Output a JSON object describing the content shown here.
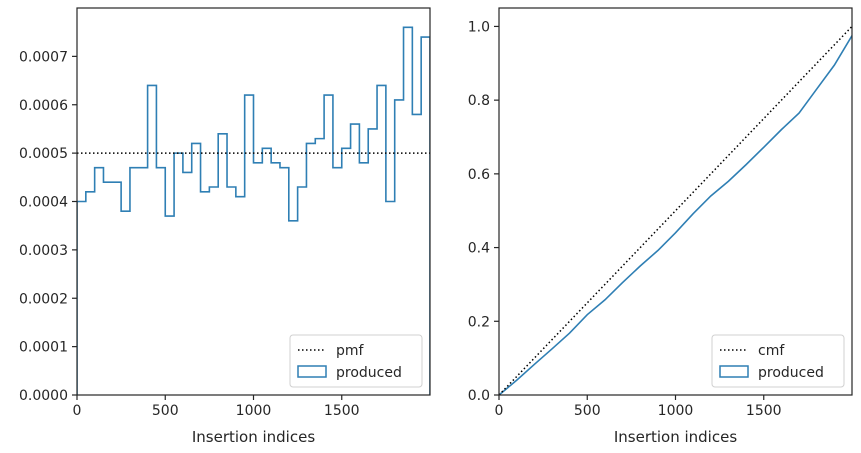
{
  "colors": {
    "series": "#2f7fb4",
    "reference": "#000000",
    "axes": "#262626",
    "legend_border": "#d0d0d0"
  },
  "chart_data": [
    {
      "type": "histogram-step",
      "title": "",
      "xlabel": "Insertion indices",
      "ylabel": "",
      "xlim": [
        0,
        2000
      ],
      "ylim": [
        0,
        0.0008
      ],
      "xticks": [
        0,
        500,
        1000,
        1500
      ],
      "xtick_labels": [
        "0",
        "500",
        "1000",
        "1500"
      ],
      "yticks": [
        0,
        0.0001,
        0.0002,
        0.0003,
        0.0004,
        0.0005,
        0.0006,
        0.0007
      ],
      "ytick_labels": [
        "0.0000",
        "0.0001",
        "0.0002",
        "0.0003",
        "0.0004",
        "0.0005",
        "0.0006",
        "0.0007"
      ],
      "grid": false,
      "legend_position": "lower-right",
      "series": [
        {
          "name": "produced",
          "style": "step",
          "bin_edges": [
            0,
            50,
            100,
            150,
            200,
            250,
            300,
            350,
            400,
            450,
            500,
            550,
            600,
            650,
            700,
            750,
            800,
            850,
            900,
            950,
            1000,
            1050,
            1100,
            1150,
            1200,
            1250,
            1300,
            1350,
            1400,
            1450,
            1500,
            1550,
            1600,
            1650,
            1700,
            1750,
            1800,
            1850,
            1900,
            1950,
            2000
          ],
          "values": [
            0.0004,
            0.00042,
            0.00047,
            0.00044,
            0.00044,
            0.00038,
            0.00047,
            0.00047,
            0.00064,
            0.00047,
            0.00037,
            0.0005,
            0.00046,
            0.00052,
            0.00042,
            0.00043,
            0.00054,
            0.00043,
            0.00041,
            0.00062,
            0.00048,
            0.00051,
            0.00048,
            0.00047,
            0.00036,
            0.00043,
            0.00052,
            0.00053,
            0.00062,
            0.00047,
            0.00051,
            0.00056,
            0.00048,
            0.00055,
            0.00064,
            0.0004,
            0.00061,
            0.00076,
            0.00058,
            0.00074
          ]
        },
        {
          "name": "pmf",
          "style": "dotted",
          "x": [
            0,
            2000
          ],
          "y": [
            0.0005,
            0.0005
          ]
        }
      ]
    },
    {
      "type": "line",
      "title": "",
      "xlabel": "Insertion indices",
      "ylabel": "",
      "xlim": [
        0,
        2000
      ],
      "ylim": [
        0,
        1.05
      ],
      "xticks": [
        0,
        500,
        1000,
        1500
      ],
      "xtick_labels": [
        "0",
        "500",
        "1000",
        "1500"
      ],
      "yticks": [
        0,
        0.2,
        0.4,
        0.6,
        0.8,
        1.0
      ],
      "ytick_labels": [
        "0.0",
        "0.2",
        "0.4",
        "0.6",
        "0.8",
        "1.0"
      ],
      "grid": false,
      "legend_position": "lower-right",
      "series": [
        {
          "name": "produced",
          "style": "solid",
          "x": [
            0,
            100,
            200,
            300,
            400,
            500,
            600,
            700,
            800,
            900,
            1000,
            1100,
            1200,
            1300,
            1400,
            1500,
            1600,
            1700,
            1800,
            1900,
            2000
          ],
          "y": [
            0.0,
            0.04,
            0.083,
            0.125,
            0.168,
            0.218,
            0.258,
            0.305,
            0.35,
            0.392,
            0.44,
            0.492,
            0.54,
            0.58,
            0.625,
            0.672,
            0.72,
            0.765,
            0.83,
            0.895,
            0.975
          ]
        },
        {
          "name": "cmf",
          "style": "dotted",
          "x": [
            0,
            2000
          ],
          "y": [
            0.0,
            1.0
          ]
        }
      ]
    }
  ]
}
